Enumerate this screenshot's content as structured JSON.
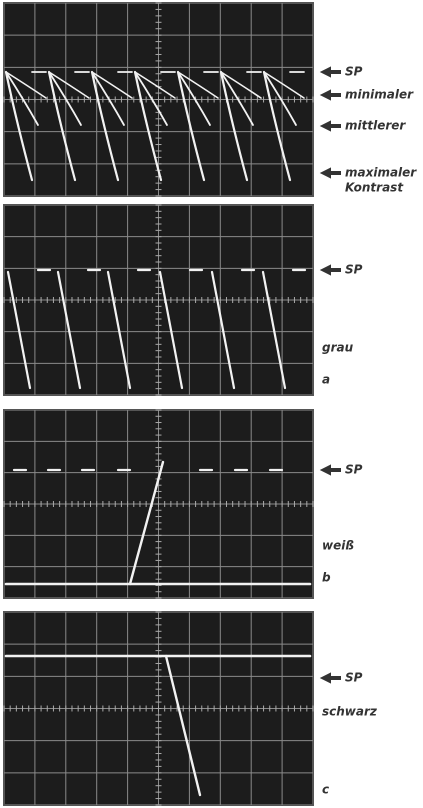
{
  "panels": [
    {
      "labels": [
        "SP",
        "minimaler",
        "mittlerer",
        "maximaler",
        "Kontrast"
      ]
    },
    {
      "labels": [
        "SP",
        "grau",
        "a"
      ]
    },
    {
      "labels": [
        "SP",
        "weiß",
        "b"
      ]
    },
    {
      "labels": [
        "SP",
        "schwarz",
        "c"
      ]
    }
  ]
}
